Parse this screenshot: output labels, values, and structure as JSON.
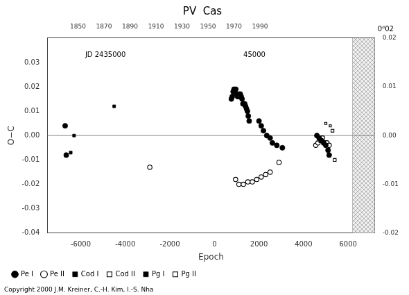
{
  "chart_data": {
    "type": "scatter",
    "title": "PV  Cas",
    "xlabel": "Epoch",
    "ylabel": "O−C",
    "footnote": "Copyright 2000 J.M. Kreiner, C.-H. Kim, I.-S. Nha",
    "xlim": [
      -7500,
      7200
    ],
    "xticks": [
      -6000,
      -4000,
      -2000,
      0,
      2000,
      4000,
      6000
    ],
    "x2lim": [
      -7500,
      7200
    ],
    "x2ticks": [
      {
        "value": -6126.6914,
        "label": "1850"
      },
      {
        "value": -4959.7025,
        "label": "1870"
      },
      {
        "value": -3792.7137,
        "label": "1890"
      },
      {
        "value": -2625.7249,
        "label": "1910"
      },
      {
        "value": -1458.736,
        "label": "1930"
      },
      {
        "value": -291.7472,
        "label": "1950"
      },
      {
        "value": 875.2416,
        "label": "1970"
      },
      {
        "value": 2042.2305,
        "label": "1990"
      }
    ],
    "ylim": [
      -0.04,
      0.04
    ],
    "yticks": [
      -0.04,
      -0.03,
      -0.02,
      -0.01,
      {
        "value": 0,
        "label": "0.00"
      },
      0.01,
      0.02,
      0.03
    ],
    "y2lim": [
      -0.02,
      0.02
    ],
    "y2ticks": [
      -0.02,
      -0.01,
      {
        "value": 0,
        "label": "0.00"
      },
      0.01,
      0.02
    ],
    "grid": false,
    "legend": "bottom",
    "regions": [
      {
        "xmin": 6200,
        "xmax": 7200
      }
    ],
    "hlines": [
      0
    ],
    "annotations": [
      {
        "text": "JD 2435000",
        "x": -5800,
        "y": 0.033
      },
      {
        "text": "45000",
        "x": 1300,
        "y": 0.033
      },
      {
        "text": "0ᵈ02",
        "axis": "y2",
        "y": 0.021
      }
    ],
    "series": [
      {
        "name": "Pe I",
        "color": "#000000",
        "marker": "filled_circle",
        "x": [
          -6700,
          -6650,
          760,
          800,
          840,
          880,
          920,
          960,
          1000,
          1040,
          1080,
          1120,
          1160,
          1200,
          1240,
          1280,
          1320,
          1360,
          1400,
          1440,
          1480,
          1520,
          1560,
          2000,
          2100,
          2200,
          2350,
          2500,
          2600,
          2800,
          3050,
          4600,
          4700,
          4800,
          4900,
          5000,
          5100,
          5150
        ],
        "values": [
          0.004,
          -0.008,
          0.015,
          0.016,
          0.018,
          0.019,
          0.018,
          0.019,
          0.017,
          0.016,
          0.016,
          0.017,
          0.017,
          0.016,
          0.015,
          0.013,
          0.013,
          0.013,
          0.012,
          0.011,
          0.01,
          0.008,
          0.006,
          0.006,
          0.004,
          0.002,
          0.0,
          -0.001,
          -0.003,
          -0.004,
          -0.005,
          0.0,
          -0.001,
          -0.002,
          -0.003,
          -0.004,
          -0.006,
          -0.008
        ]
      },
      {
        "name": "Pe II",
        "color": "#000000",
        "marker": "open_circle",
        "x": [
          -2900,
          950,
          1100,
          1300,
          1500,
          1700,
          1900,
          2100,
          2300,
          2500,
          2900,
          4550,
          4650,
          4750,
          4850,
          4950,
          5050,
          5150
        ],
        "values": [
          -0.013,
          -0.018,
          -0.02,
          -0.02,
          -0.019,
          -0.019,
          -0.018,
          -0.017,
          -0.016,
          -0.015,
          -0.011,
          -0.004,
          -0.003,
          -0.002,
          -0.001,
          -0.003,
          -0.003,
          -0.004
        ]
      },
      {
        "name": "Cod I",
        "color": "#000000",
        "marker": "filled_square",
        "x": [
          -4500,
          -6300,
          -6450
        ],
        "values": [
          0.012,
          0.0,
          -0.007
        ]
      },
      {
        "name": "Cod II",
        "color": "#000000",
        "marker": "open_square",
        "x": [
          5300,
          5400
        ],
        "values": [
          0.002,
          -0.01
        ]
      },
      {
        "name": "Pg I",
        "color": "#000000",
        "marker": "filled_square_small",
        "x": [],
        "values": []
      },
      {
        "name": "Pg II",
        "color": "#000000",
        "marker": "open_square_small",
        "x": [
          5000,
          5200
        ],
        "values": [
          0.005,
          0.004
        ]
      }
    ]
  }
}
